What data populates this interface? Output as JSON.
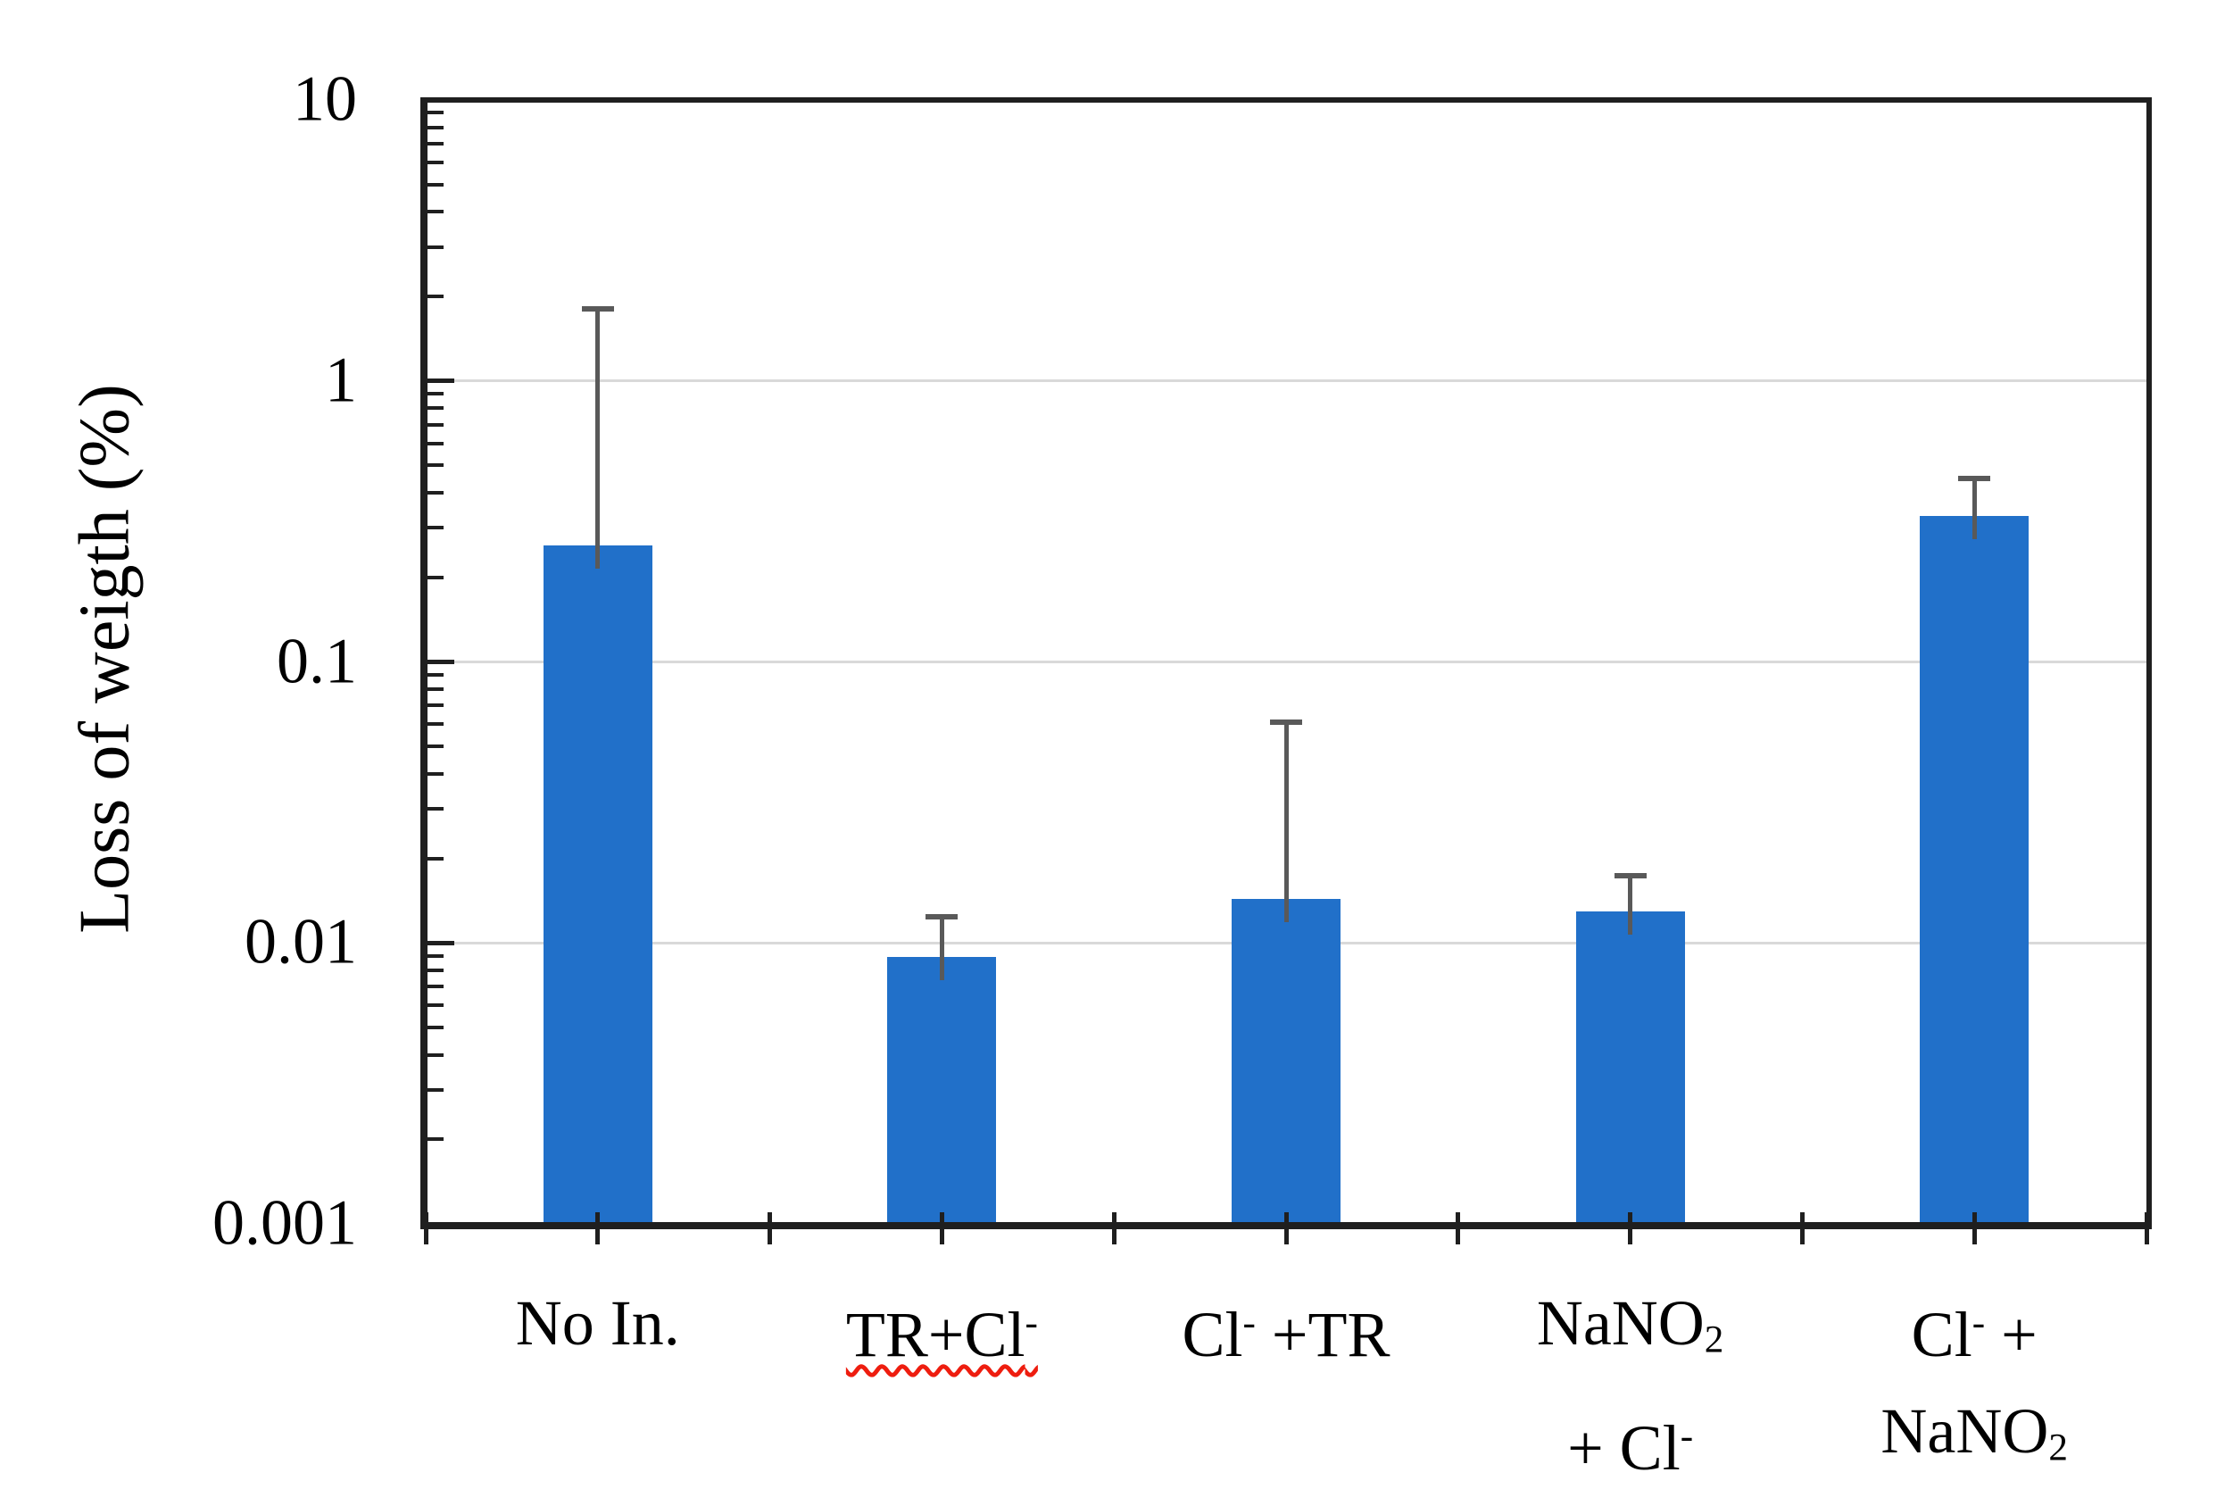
{
  "chart_data": {
    "type": "bar",
    "title": "",
    "xlabel": "",
    "ylabel": "Loss of weigth (%)",
    "yscale": "log",
    "ylim": [
      0.001,
      10
    ],
    "grid": true,
    "legend": false,
    "labels_plain": [
      "No In.",
      "TR+Cl-",
      "Cl- +TR",
      "NaNO2 + Cl-",
      "Cl- + NaNO2"
    ],
    "values": [
      0.26,
      0.0089,
      0.0143,
      0.0129,
      0.33
    ],
    "error_top": [
      1.8,
      0.0124,
      0.061,
      0.0173,
      0.45
    ],
    "yticks": [
      {
        "v": 10,
        "label": "10"
      },
      {
        "v": 1,
        "label": "1"
      },
      {
        "v": 0.1,
        "label": "0.1"
      },
      {
        "v": 0.01,
        "label": "0.01"
      },
      {
        "v": 0.001,
        "label": "0.001"
      }
    ],
    "categories": [
      {
        "value": 0.26,
        "error_top": 1.8,
        "label_lines": [
          [
            {
              "t": "No In."
            }
          ]
        ]
      },
      {
        "value": 0.0089,
        "error_top": 0.0124,
        "underline": "red-wavy",
        "label_lines": [
          [
            {
              "t": "TR+Cl"
            },
            {
              "t": "-",
              "s": "sup"
            }
          ]
        ]
      },
      {
        "value": 0.0143,
        "error_top": 0.061,
        "label_lines": [
          [
            {
              "t": "Cl"
            },
            {
              "t": "-",
              "s": "sup"
            },
            {
              "t": " +TR"
            }
          ]
        ]
      },
      {
        "value": 0.0129,
        "error_top": 0.0173,
        "label_lines": [
          [
            {
              "t": "NaNO"
            },
            {
              "t": "2",
              "s": "sub"
            }
          ],
          [
            {
              "t": "+ Cl"
            },
            {
              "t": "-",
              "s": "sup"
            }
          ]
        ]
      },
      {
        "value": 0.33,
        "error_top": 0.45,
        "label_lines": [
          [
            {
              "t": "Cl"
            },
            {
              "t": "-",
              "s": "sup"
            },
            {
              "t": " +"
            }
          ],
          [
            {
              "t": "NaNO"
            },
            {
              "t": "2",
              "s": "sub"
            }
          ]
        ]
      }
    ],
    "colors": {
      "bar_fill": "#2170c9",
      "error_bar": "#595959",
      "gridline": "#d9d9d9",
      "axis": "#1f1f1f",
      "spellcheck_underline": "#ee1d0f"
    }
  }
}
